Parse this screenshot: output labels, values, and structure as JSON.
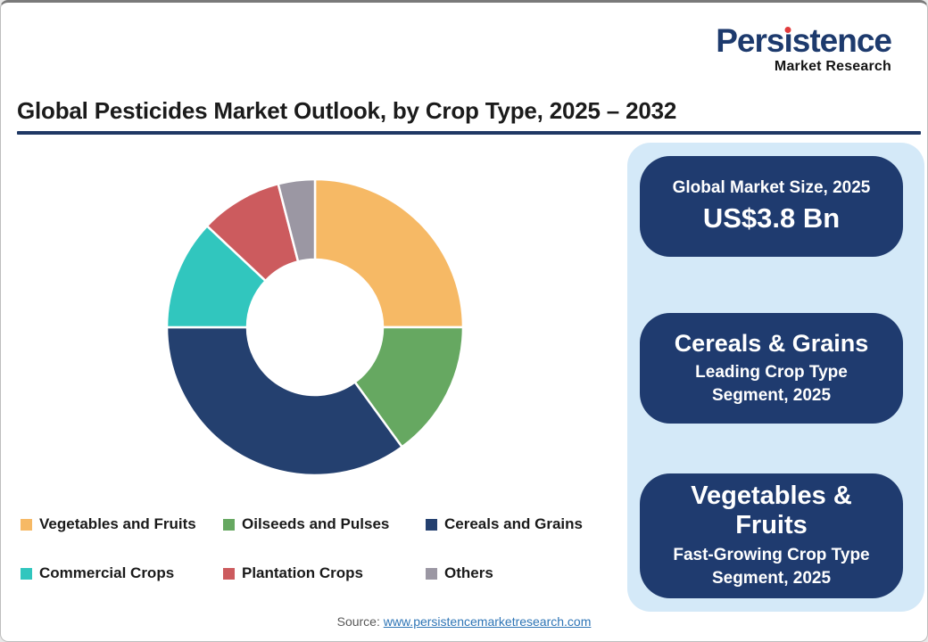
{
  "logo": {
    "brand": "Persistence",
    "sub": "Market Research"
  },
  "title": "Global Pesticides Market Outlook, by Crop Type, 2025 – 2032",
  "chart_data": {
    "type": "pie",
    "subtype": "donut",
    "title": "Global Pesticides Market Outlook, by Crop Type, 2025 – 2032",
    "categories": [
      "Vegetables and Fruits",
      "Oilseeds and Pulses",
      "Cereals and Grains",
      "Commercial Crops",
      "Plantation Crops",
      "Others"
    ],
    "values": [
      25,
      15,
      35,
      12,
      9,
      4
    ],
    "unit": "% share (estimated from arc angles)",
    "colors": [
      "#f6b965",
      "#66a861",
      "#24406f",
      "#31c6be",
      "#cc5b5e",
      "#9b97a3"
    ],
    "start_angle_deg": 0,
    "direction": "clockwise",
    "inner_radius_ratio": 0.46,
    "legend_position": "bottom"
  },
  "info_cards": [
    {
      "title": "Global Market Size, 2025",
      "value": "US$3.8 Bn"
    },
    {
      "title": "Cereals & Grains",
      "subtitle": "Leading Crop Type Segment, 2025"
    },
    {
      "title": "Vegetables & Fruits",
      "subtitle": "Fast-Growing Crop Type Segment, 2025"
    }
  ],
  "source": {
    "prefix": "Source:",
    "link": "www.persistencemarketresearch.com"
  },
  "colors": {
    "accent_navy": "#1f3b6f",
    "panel_bg": "#d4e9f8",
    "title_rule": "#1f3864",
    "logo_blue": "#1d3a6d",
    "logo_dot": "#e13b3c",
    "link": "#2e75b6"
  }
}
